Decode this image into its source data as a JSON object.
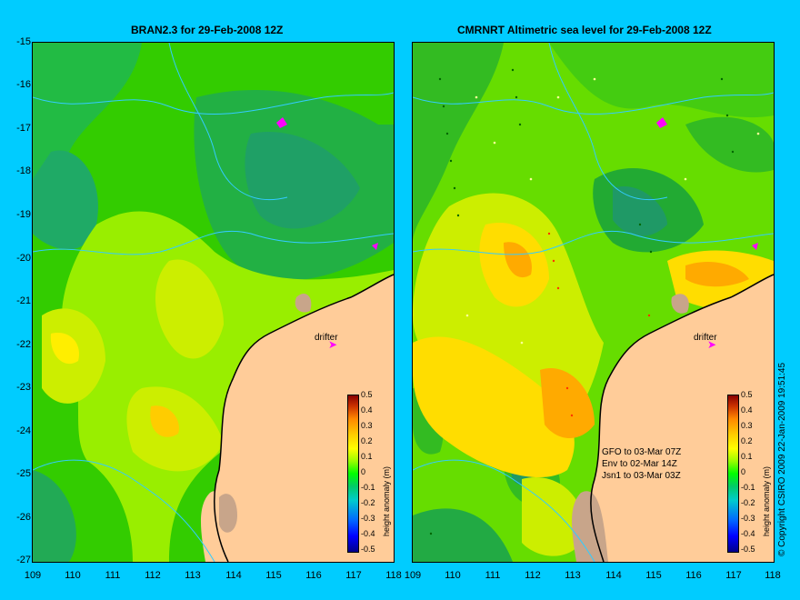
{
  "left_panel": {
    "title": "BRAN2.3 for 29-Feb-2008 12Z",
    "drifter_label": "drifter",
    "colorbar_label": "height anomaly (m)"
  },
  "right_panel": {
    "title": "CMRNRT Altimetric sea level  for 29-Feb-2008 12Z",
    "drifter_label": "drifter",
    "colorbar_label": "height anomaly (m)",
    "satellite_legend": [
      "GFO to 03-Mar 07Z",
      "Env to 02-Mar 14Z",
      "Jsn1 to 03-Mar 03Z"
    ]
  },
  "y_axis_ticks": [
    "-15",
    "-16",
    "-17",
    "-18",
    "-19",
    "-20",
    "-21",
    "-22",
    "-23",
    "-24",
    "-25",
    "-26",
    "-27"
  ],
  "x_axis_ticks_left": [
    "109",
    "110",
    "111",
    "112",
    "113",
    "114",
    "115",
    "116",
    "117",
    "118"
  ],
  "x_axis_ticks_right": [
    "109",
    "110",
    "111",
    "112",
    "113",
    "114",
    "115",
    "116",
    "117",
    "118"
  ],
  "colorbar_ticks": [
    "0.5",
    "0.4",
    "0.3",
    "0.2",
    "0.1",
    "0",
    "-0.1",
    "-0.2",
    "-0.3",
    "-0.4",
    "-0.5"
  ],
  "copyright": "© Copyright CSIRO 2009   22-Jan-2009 19:51:45",
  "colors": {
    "background": "#00ccff",
    "land": "#ffcc99",
    "drifter": "#ff00ff",
    "contour": "#33ccff"
  }
}
